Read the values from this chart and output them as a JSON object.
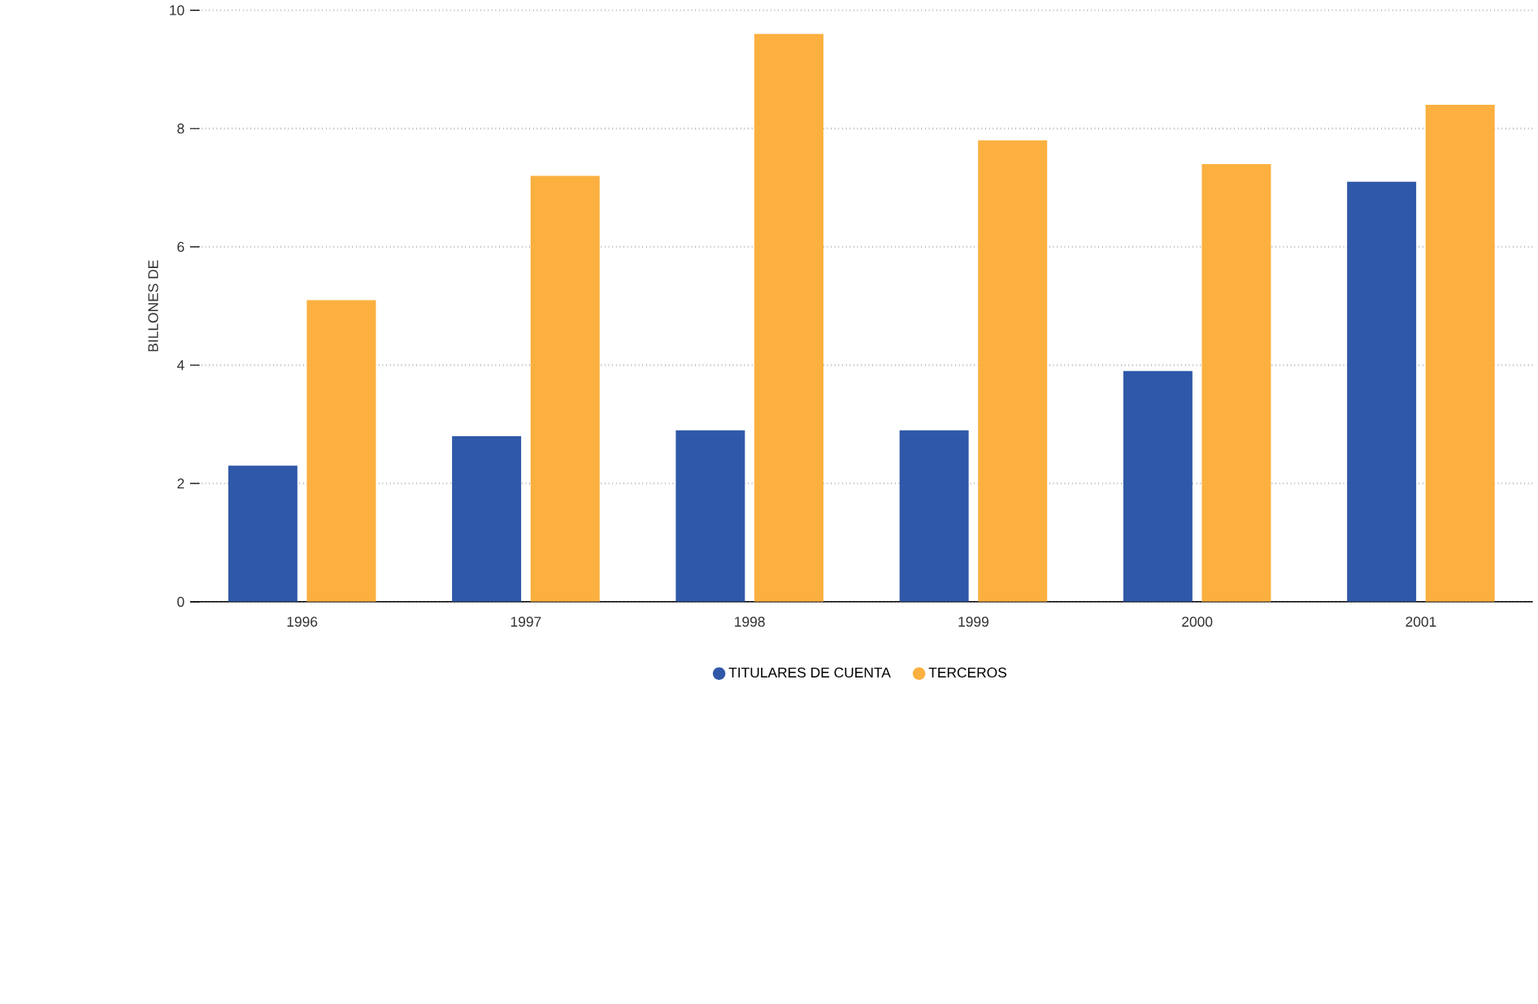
{
  "chart_data": {
    "type": "bar",
    "ylabel": "BILLONES DE",
    "categories": [
      "1996",
      "1997",
      "1998",
      "1999",
      "2000",
      "2001"
    ],
    "series": [
      {
        "name": "TITULARES DE CUENTA",
        "color": "#2f58a8",
        "values": [
          2.3,
          2.8,
          2.9,
          2.9,
          3.9,
          7.1
        ]
      },
      {
        "name": "TERCEROS",
        "color": "#fbb040",
        "values": [
          5.1,
          7.2,
          9.6,
          7.8,
          7.4,
          8.4
        ]
      }
    ],
    "ylim": [
      0,
      10
    ],
    "yticks": [
      0,
      2,
      4,
      6,
      8,
      10
    ],
    "grid": "y",
    "legend": "bottom"
  }
}
